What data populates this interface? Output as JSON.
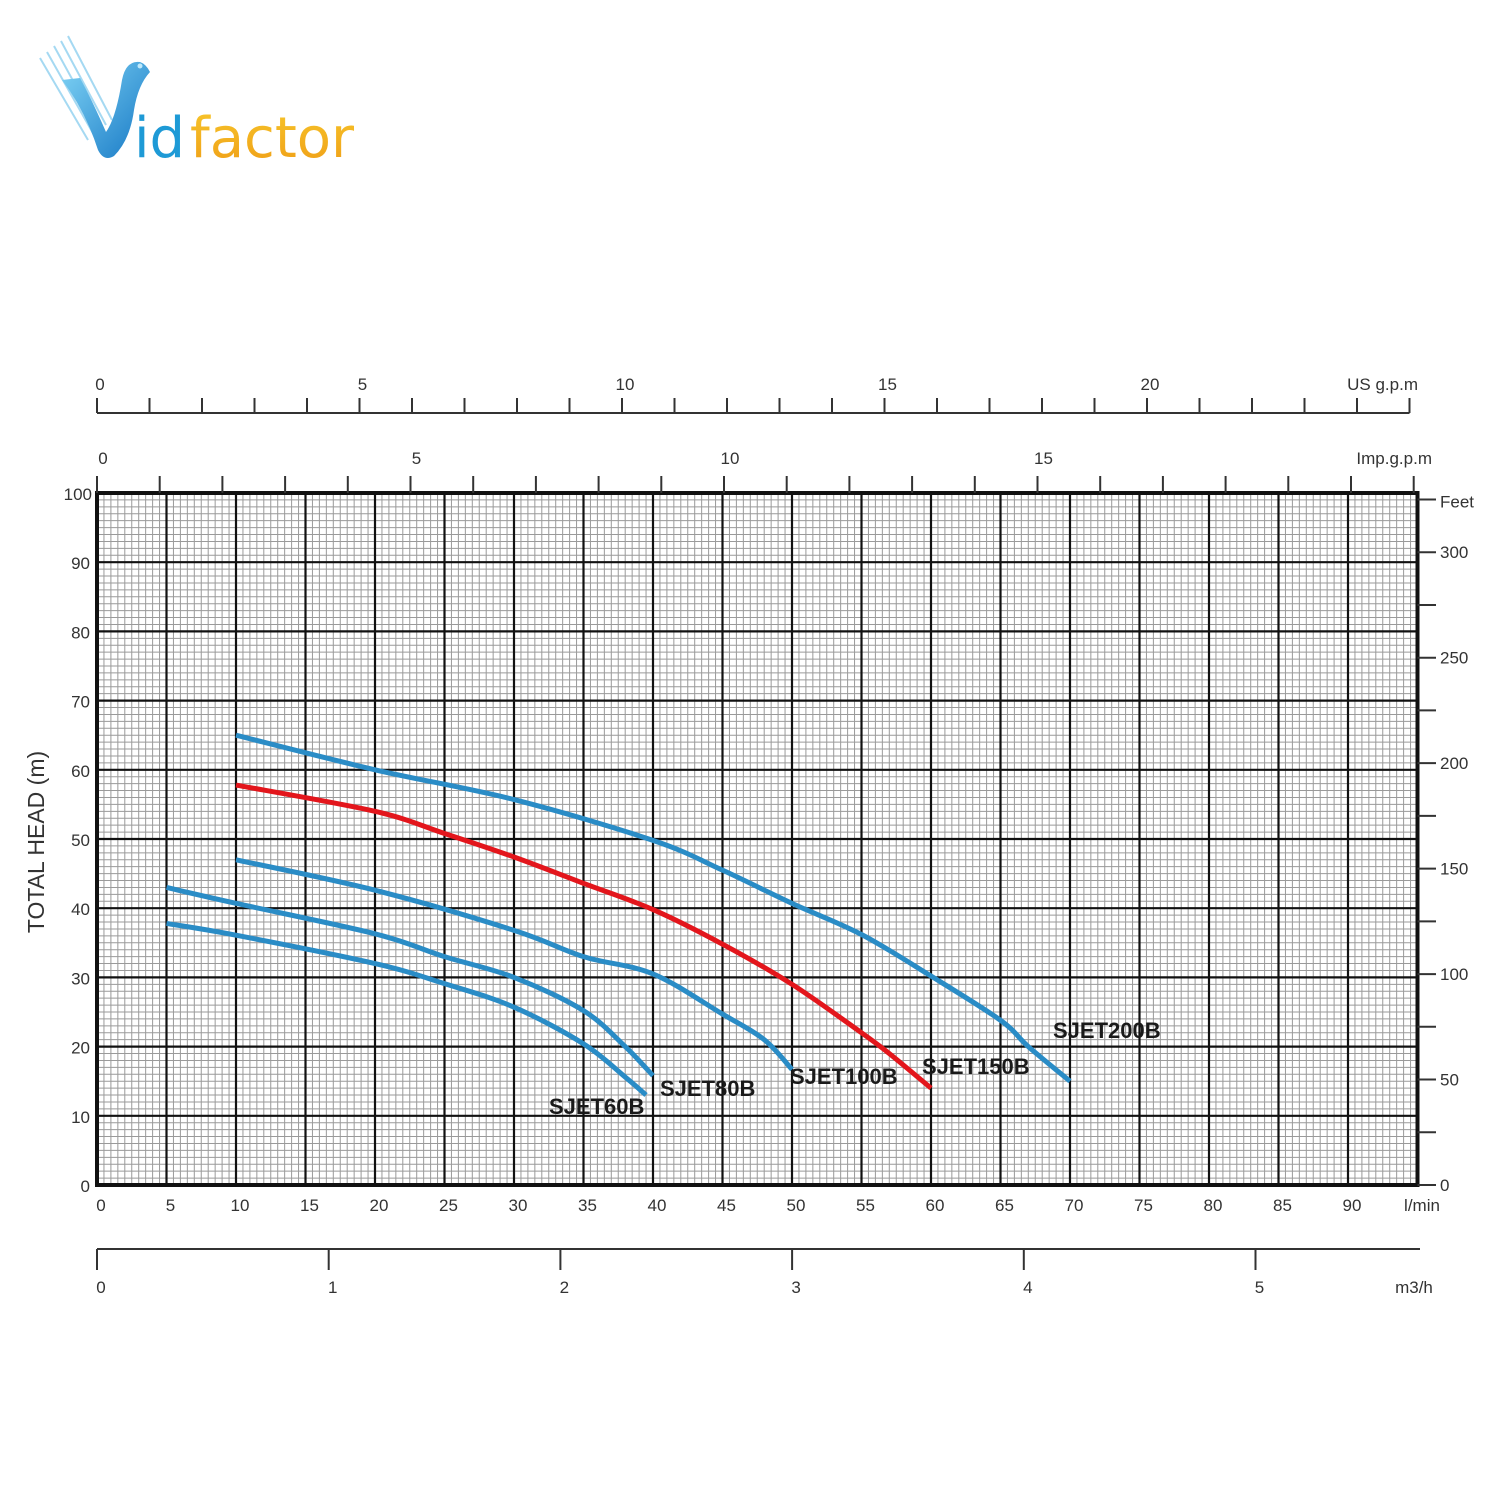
{
  "logo": {
    "text": "Vidfactor",
    "prefix": "V",
    "blue_part": "id",
    "orange_part": "factor",
    "blue": "#1e9ad6",
    "orange": "#f2b01e"
  },
  "chart_data": {
    "type": "line",
    "title": "",
    "xlabel": "l/min",
    "ylabel": "TOTAL HEAD (m)",
    "xlim": [
      0,
      95
    ],
    "ylim": [
      0,
      100
    ],
    "grid": true,
    "x_ticks": [
      0,
      5,
      10,
      15,
      20,
      25,
      30,
      35,
      40,
      45,
      50,
      55,
      60,
      65,
      70,
      75,
      80,
      85,
      90
    ],
    "y_ticks": [
      0,
      10,
      20,
      30,
      40,
      50,
      60,
      70,
      80,
      90,
      100
    ],
    "secondary_axes": {
      "us_gpm": {
        "label": "US g.p.m",
        "range": [
          0,
          25
        ],
        "tick_labels": [
          0,
          5,
          10,
          15,
          20
        ]
      },
      "imp_gpm": {
        "label": "Imp.g.p.m",
        "range": [
          0,
          21
        ],
        "tick_labels": [
          0,
          5,
          10,
          15
        ]
      },
      "m3h": {
        "label": "m3/h",
        "range": [
          0,
          5.7
        ],
        "tick_labels": [
          0,
          1,
          2,
          3,
          4,
          5
        ]
      },
      "feet": {
        "label": "Feet",
        "range": [
          0,
          325
        ],
        "tick_labels": [
          0,
          50,
          100,
          150,
          200,
          250,
          300
        ]
      }
    },
    "series": [
      {
        "name": "SJET60B",
        "color": "#2a8cc6",
        "x": [
          5,
          10,
          20,
          25,
          30,
          35,
          38,
          39.5
        ],
        "y": [
          37.8,
          36.1,
          32,
          29.1,
          25.7,
          20.4,
          15.6,
          13
        ]
      },
      {
        "name": "SJET80B",
        "color": "#2a8cc6",
        "x": [
          5,
          10,
          20,
          25,
          30,
          35,
          38,
          40
        ],
        "y": [
          43,
          40.7,
          36.3,
          33,
          30,
          25.2,
          20,
          15.8
        ]
      },
      {
        "name": "SJET100B",
        "color": "#2a8cc6",
        "x": [
          10,
          20,
          30,
          35,
          40,
          45,
          48,
          50
        ],
        "y": [
          47,
          42.6,
          36.8,
          33,
          30.5,
          24.7,
          21,
          16.7
        ]
      },
      {
        "name": "SJET150B",
        "color": "#e3161c",
        "x": [
          10,
          20,
          25,
          30,
          35,
          40,
          45,
          50,
          55,
          57,
          60
        ],
        "y": [
          57.8,
          54,
          50.8,
          47.4,
          43.6,
          39.8,
          34.8,
          29,
          22,
          19,
          14
        ]
      },
      {
        "name": "SJET200B",
        "color": "#2a8cc6",
        "x": [
          10,
          20,
          30,
          40,
          45,
          50,
          55,
          60,
          65,
          67,
          70
        ],
        "y": [
          65,
          60,
          55.7,
          49.8,
          45.5,
          40.7,
          36.2,
          30.2,
          23.8,
          20,
          15
        ]
      }
    ]
  }
}
